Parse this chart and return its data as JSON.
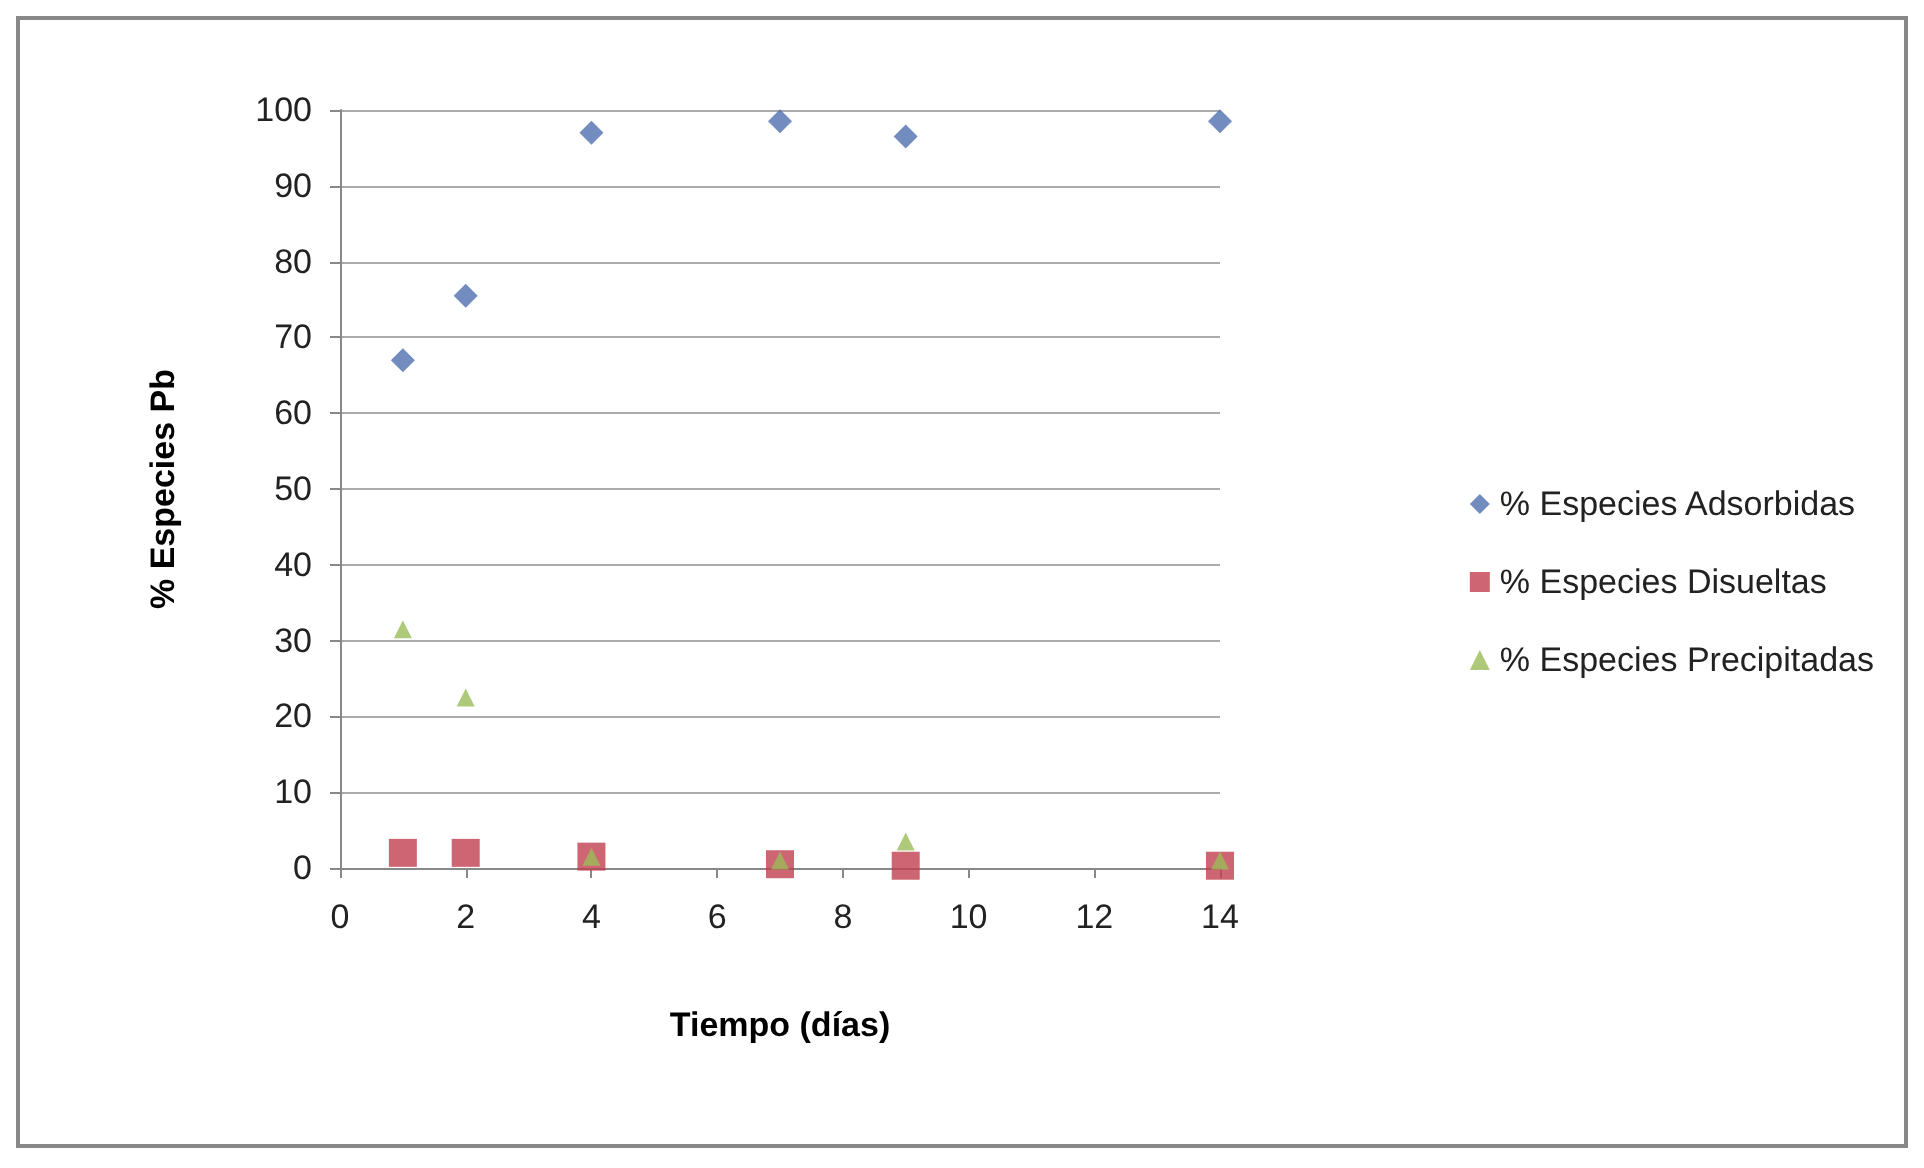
{
  "chart_data": {
    "type": "scatter",
    "xlabel": "Tiempo (días)",
    "ylabel": "% Especies Pb",
    "x": [
      1,
      2,
      4,
      7,
      9,
      14
    ],
    "series": [
      {
        "name": "% Especies Adsorbidas",
        "color": "#4f6fb0",
        "marker": "diamond",
        "values": [
          67,
          75.5,
          97,
          98.5,
          96.5,
          98.5
        ]
      },
      {
        "name": "% Especies Disueltas",
        "color": "#c0404f",
        "marker": "square",
        "values": [
          2,
          2,
          1.5,
          0.5,
          0.3,
          0.3
        ]
      },
      {
        "name": "% Especies Precipitadas",
        "color": "#9bbb59",
        "marker": "triangle",
        "values": [
          31.5,
          22.5,
          1.5,
          1,
          3.5,
          1
        ]
      }
    ],
    "xlim": [
      0,
      14
    ],
    "xticks": [
      0,
      2,
      4,
      6,
      8,
      10,
      12,
      14
    ],
    "ylim": [
      0,
      100
    ],
    "yticks": [
      0,
      10,
      20,
      30,
      40,
      50,
      60,
      70,
      80,
      90,
      100
    ],
    "grid": "y",
    "legend": "right"
  }
}
